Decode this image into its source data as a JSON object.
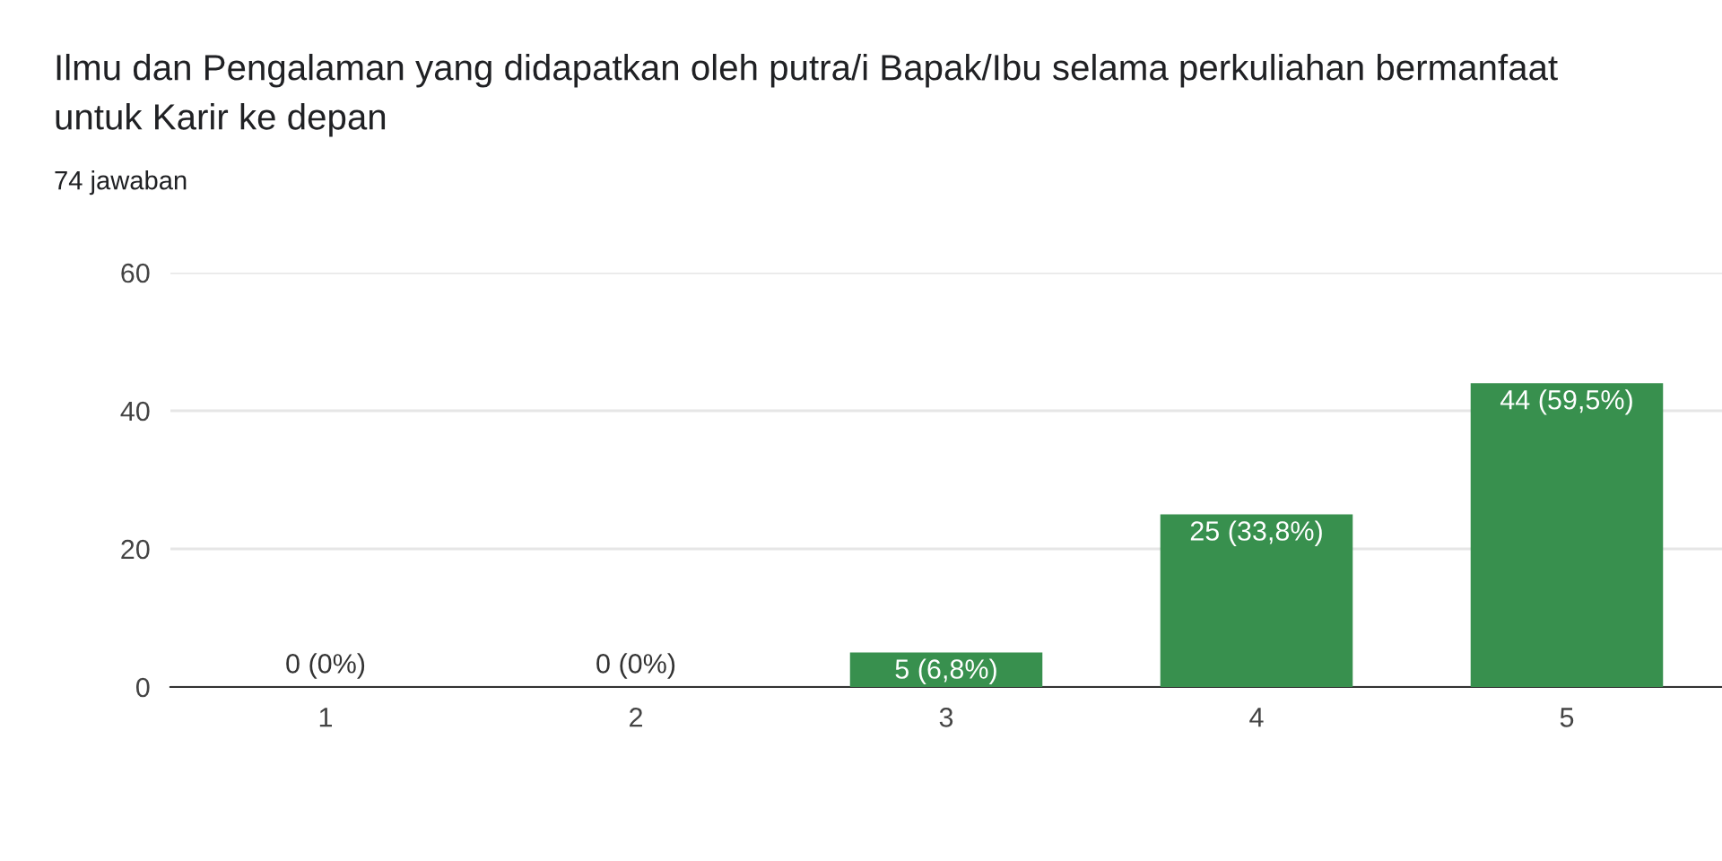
{
  "chart_data": {
    "type": "bar",
    "title": "Ilmu dan Pengalaman yang didapatkan oleh putra/i Bapak/Ibu selama perkuliahan bermanfaat\nuntuk Karir ke depan",
    "subtitle": "74 jawaban",
    "categories": [
      "1",
      "2",
      "3",
      "4",
      "5"
    ],
    "values": [
      0,
      0,
      5,
      25,
      44
    ],
    "value_labels": [
      "0 (0%)",
      "0 (0%)",
      "5 (6,8%)",
      "25 (33,8%)",
      "44 (59,5%)"
    ],
    "color": "#38904e",
    "ylim": [
      0,
      60
    ],
    "yticks": [
      0,
      20,
      40,
      60
    ],
    "grid": "y"
  }
}
